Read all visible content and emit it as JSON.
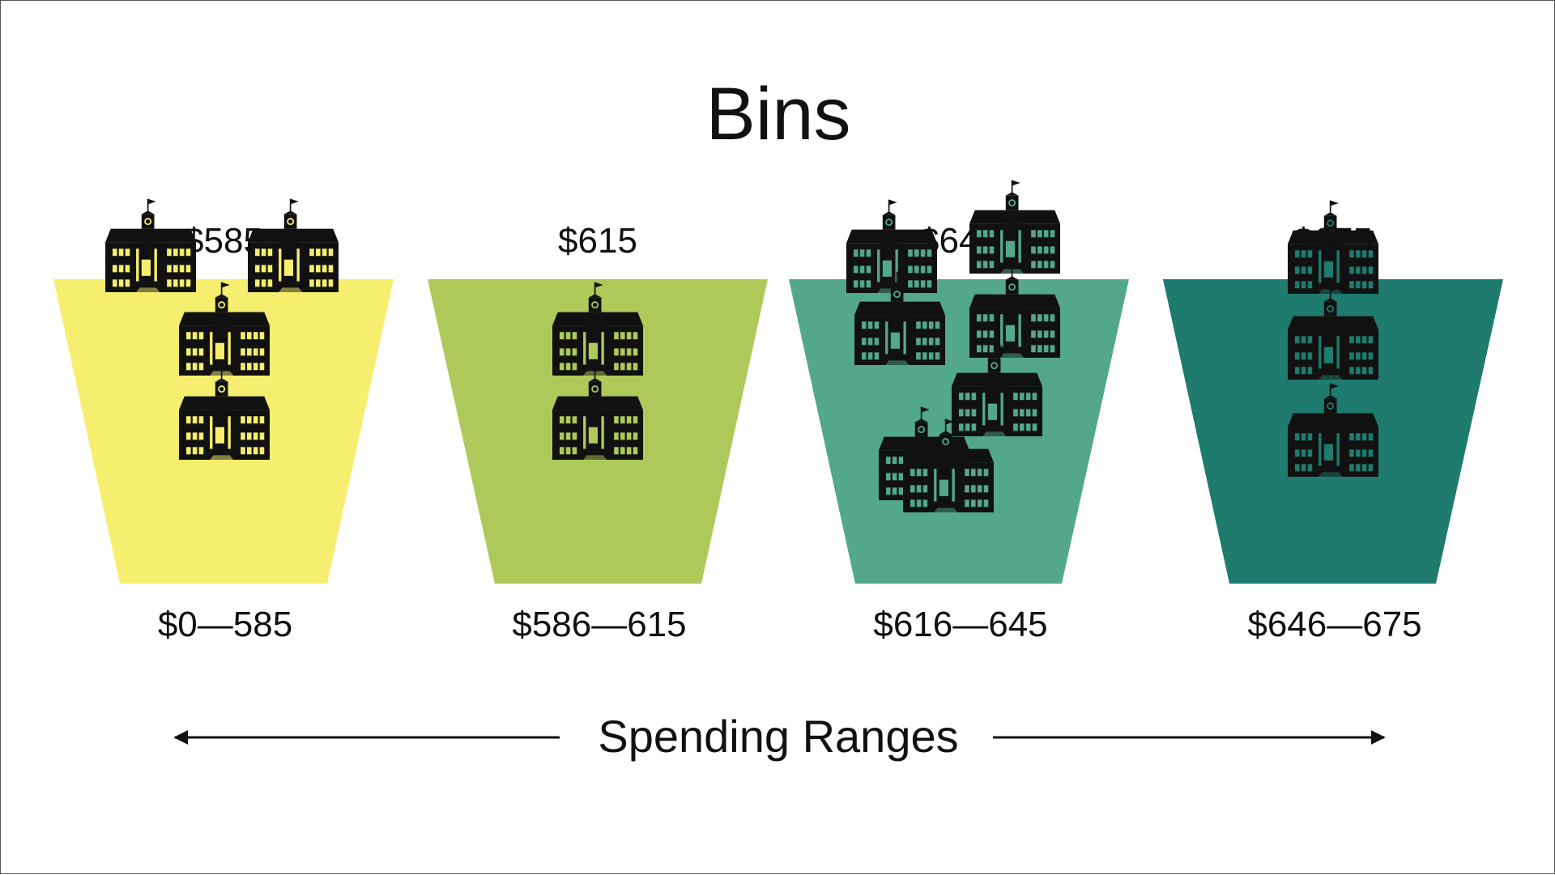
{
  "title": "Bins",
  "axis_label": "Spending Ranges",
  "colors": {
    "building": "#111111",
    "arrow": "#111111"
  },
  "bins": [
    {
      "top_label": "$585",
      "range_label": "$0—585",
      "fill": "#f6ee6e",
      "window": "#f6ee6e",
      "school_count": 4
    },
    {
      "top_label": "$615",
      "range_label": "$586—615",
      "fill": "#aec959",
      "window": "#aec959",
      "school_count": 2
    },
    {
      "top_label": "$645",
      "range_label": "$616—645",
      "fill": "#52a889",
      "window": "#52a889",
      "school_count": 7
    },
    {
      "top_label": "$675",
      "range_label": "$646—675",
      "fill": "#1e7b6d",
      "window": "#1e7b6d",
      "school_count": 3
    }
  ]
}
